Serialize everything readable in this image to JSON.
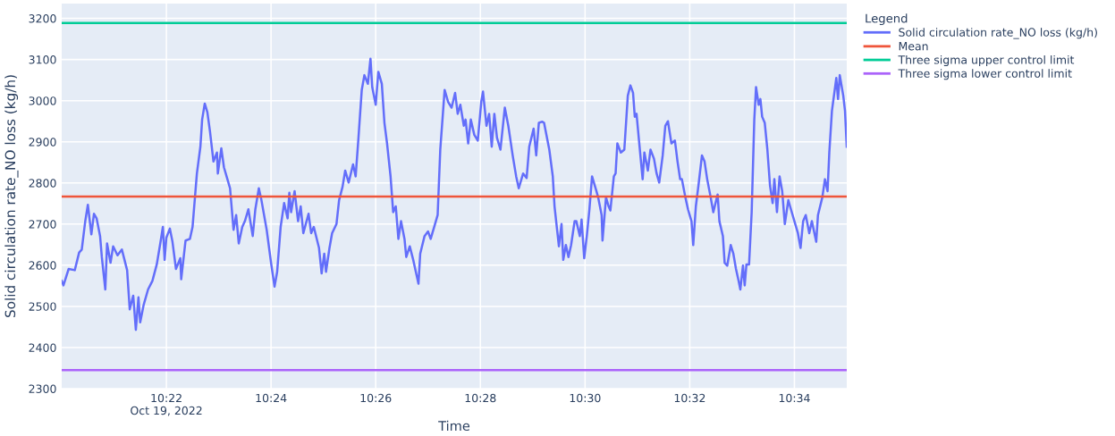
{
  "chart_data": {
    "type": "line",
    "xlabel": "Time",
    "ylabel": "Solid circulation rate_NO loss (kg/h)",
    "legend_title": "Legend",
    "legend": "top right",
    "grid": true,
    "marker": "none",
    "line_style": "solid",
    "xlim": [
      "2022-10-19T10:20",
      "2022-10-19T10:35"
    ],
    "xticks": [
      {
        "value": "2022-10-19T10:22",
        "label": "10:22\nOct 19, 2022"
      },
      {
        "value": "2022-10-19T10:24",
        "label": "10:24"
      },
      {
        "value": "2022-10-19T10:26",
        "label": "10:26"
      },
      {
        "value": "2022-10-19T10:28",
        "label": "10:28"
      },
      {
        "value": "2022-10-19T10:30",
        "label": "10:30"
      },
      {
        "value": "2022-10-19T10:32",
        "label": "10:32"
      },
      {
        "value": "2022-10-19T10:34",
        "label": "10:34"
      }
    ],
    "ylim": [
      2300,
      3236
    ],
    "yticks": [
      2300,
      2400,
      2500,
      2600,
      2700,
      2800,
      2900,
      3000,
      3100,
      3200
    ],
    "series": [
      {
        "name": "Solid circulation rate_NO loss (kg/h)",
        "color": "#636efa",
        "x": [
          "2022-10-19T10:20:00",
          "2022-10-19T10:20:02",
          "2022-10-19T10:20:08",
          "2022-10-19T10:20:15",
          "2022-10-19T10:20:20",
          "2022-10-19T10:20:23",
          "2022-10-19T10:20:27",
          "2022-10-19T10:20:30",
          "2022-10-19T10:20:34",
          "2022-10-19T10:20:37",
          "2022-10-19T10:20:40",
          "2022-10-19T10:20:44",
          "2022-10-19T10:20:46",
          "2022-10-19T10:20:50",
          "2022-10-19T10:20:52",
          "2022-10-19T10:20:56",
          "2022-10-19T10:20:59",
          "2022-10-19T10:21:04",
          "2022-10-19T10:21:09",
          "2022-10-19T10:21:15",
          "2022-10-19T10:21:18",
          "2022-10-19T10:21:22",
          "2022-10-19T10:21:25",
          "2022-10-19T10:21:28",
          "2022-10-19T10:21:30",
          "2022-10-19T10:21:34",
          "2022-10-19T10:21:39",
          "2022-10-19T10:21:44",
          "2022-10-19T10:21:49",
          "2022-10-19T10:21:53",
          "2022-10-19T10:21:56",
          "2022-10-19T10:21:58",
          "2022-10-19T10:22:00",
          "2022-10-19T10:22:04",
          "2022-10-19T10:22:07",
          "2022-10-19T10:22:11",
          "2022-10-19T10:22:16",
          "2022-10-19T10:22:17",
          "2022-10-19T10:22:22",
          "2022-10-19T10:22:27",
          "2022-10-19T10:22:30",
          "2022-10-19T10:22:35",
          "2022-10-19T10:22:39",
          "2022-10-19T10:22:41",
          "2022-10-19T10:22:44",
          "2022-10-19T10:22:47",
          "2022-10-19T10:22:50",
          "2022-10-19T10:22:54",
          "2022-10-19T10:22:58",
          "2022-10-19T10:22:59",
          "2022-10-19T10:23:03",
          "2022-10-19T10:23:06",
          "2022-10-19T10:23:10",
          "2022-10-19T10:23:13",
          "2022-10-19T10:23:17",
          "2022-10-19T10:23:20",
          "2022-10-19T10:23:23",
          "2022-10-19T10:23:27",
          "2022-10-19T10:23:30",
          "2022-10-19T10:23:34",
          "2022-10-19T10:23:39",
          "2022-10-19T10:23:42",
          "2022-10-19T10:23:46",
          "2022-10-19T10:23:49",
          "2022-10-19T10:23:55",
          "2022-10-19T10:24:00",
          "2022-10-19T10:24:04",
          "2022-10-19T10:24:07",
          "2022-10-19T10:24:11",
          "2022-10-19T10:24:15",
          "2022-10-19T10:24:19",
          "2022-10-19T10:24:21",
          "2022-10-19T10:24:23",
          "2022-10-19T10:24:27",
          "2022-10-19T10:24:31",
          "2022-10-19T10:24:34",
          "2022-10-19T10:24:37",
          "2022-10-19T10:24:43",
          "2022-10-19T10:24:46",
          "2022-10-19T10:24:49",
          "2022-10-19T10:24:55",
          "2022-10-19T10:24:58",
          "2022-10-19T10:25:01",
          "2022-10-19T10:25:03",
          "2022-10-19T10:25:07",
          "2022-10-19T10:25:10",
          "2022-10-19T10:25:15",
          "2022-10-19T10:25:18",
          "2022-10-19T10:25:22",
          "2022-10-19T10:25:25",
          "2022-10-19T10:25:29",
          "2022-10-19T10:25:34",
          "2022-10-19T10:25:37",
          "2022-10-19T10:25:40",
          "2022-10-19T10:25:44",
          "2022-10-19T10:25:47",
          "2022-10-19T10:25:51",
          "2022-10-19T10:25:54",
          "2022-10-19T10:25:56",
          "2022-10-19T10:26:00",
          "2022-10-19T10:26:03",
          "2022-10-19T10:26:07",
          "2022-10-19T10:26:10",
          "2022-10-19T10:26:13",
          "2022-10-19T10:26:17",
          "2022-10-19T10:26:20",
          "2022-10-19T10:26:23",
          "2022-10-19T10:26:26",
          "2022-10-19T10:26:29",
          "2022-10-19T10:26:33",
          "2022-10-19T10:26:35",
          "2022-10-19T10:26:39",
          "2022-10-19T10:26:43",
          "2022-10-19T10:26:46",
          "2022-10-19T10:26:49",
          "2022-10-19T10:26:51",
          "2022-10-19T10:26:56",
          "2022-10-19T10:27:00",
          "2022-10-19T10:27:03",
          "2022-10-19T10:27:07",
          "2022-10-19T10:27:11",
          "2022-10-19T10:27:14",
          "2022-10-19T10:27:17",
          "2022-10-19T10:27:19",
          "2022-10-19T10:27:23",
          "2022-10-19T10:27:27",
          "2022-10-19T10:27:31",
          "2022-10-19T10:27:34",
          "2022-10-19T10:27:37",
          "2022-10-19T10:27:41",
          "2022-10-19T10:27:43",
          "2022-10-19T10:27:46",
          "2022-10-19T10:27:49",
          "2022-10-19T10:27:53",
          "2022-10-19T10:27:57",
          "2022-10-19T10:28:01",
          "2022-10-19T10:28:03",
          "2022-10-19T10:28:07",
          "2022-10-19T10:28:10",
          "2022-10-19T10:28:13",
          "2022-10-19T10:28:16",
          "2022-10-19T10:28:19",
          "2022-10-19T10:28:23",
          "2022-10-19T10:28:28",
          "2022-10-19T10:28:32",
          "2022-10-19T10:28:37",
          "2022-10-19T10:28:41",
          "2022-10-19T10:28:44",
          "2022-10-19T10:28:49",
          "2022-10-19T10:28:53",
          "2022-10-19T10:28:56",
          "2022-10-19T10:29:01",
          "2022-10-19T10:29:04",
          "2022-10-19T10:29:07",
          "2022-10-19T10:29:11",
          "2022-10-19T10:29:13",
          "2022-10-19T10:29:19",
          "2022-10-19T10:29:23",
          "2022-10-19T10:29:25",
          "2022-10-19T10:29:30",
          "2022-10-19T10:29:33",
          "2022-10-19T10:29:35",
          "2022-10-19T10:29:38",
          "2022-10-19T10:29:41",
          "2022-10-19T10:29:44",
          "2022-10-19T10:29:48",
          "2022-10-19T10:29:50",
          "2022-10-19T10:29:54",
          "2022-10-19T10:29:56",
          "2022-10-19T10:29:59",
          "2022-10-19T10:30:02",
          "2022-10-19T10:30:05",
          "2022-10-19T10:30:08",
          "2022-10-19T10:30:13",
          "2022-10-19T10:30:15",
          "2022-10-19T10:30:19",
          "2022-10-19T10:30:20",
          "2022-10-19T10:30:24",
          "2022-10-19T10:30:27",
          "2022-10-19T10:30:29",
          "2022-10-19T10:30:33",
          "2022-10-19T10:30:35",
          "2022-10-19T10:30:37",
          "2022-10-19T10:30:41",
          "2022-10-19T10:30:45",
          "2022-10-19T10:30:49",
          "2022-10-19T10:30:52",
          "2022-10-19T10:30:55",
          "2022-10-19T10:30:57",
          "2022-10-19T10:30:59",
          "2022-10-19T10:31:02",
          "2022-10-19T10:31:06",
          "2022-10-19T10:31:08",
          "2022-10-19T10:31:12",
          "2022-10-19T10:31:15",
          "2022-10-19T10:31:19",
          "2022-10-19T10:31:22",
          "2022-10-19T10:31:25",
          "2022-10-19T10:31:29",
          "2022-10-19T10:31:32",
          "2022-10-19T10:31:35",
          "2022-10-19T10:31:39",
          "2022-10-19T10:31:43",
          "2022-10-19T10:31:46",
          "2022-10-19T10:31:49",
          "2022-10-19T10:31:51",
          "2022-10-19T10:31:55",
          "2022-10-19T10:31:58",
          "2022-10-19T10:32:02",
          "2022-10-19T10:32:04",
          "2022-10-19T10:32:07",
          "2022-10-19T10:32:10",
          "2022-10-19T10:32:14",
          "2022-10-19T10:32:17",
          "2022-10-19T10:32:20",
          "2022-10-19T10:32:24",
          "2022-10-19T10:32:27",
          "2022-10-19T10:32:32",
          "2022-10-19T10:32:34",
          "2022-10-19T10:32:38",
          "2022-10-19T10:32:40",
          "2022-10-19T10:32:43",
          "2022-10-19T10:32:47",
          "2022-10-19T10:32:50",
          "2022-10-19T10:32:53",
          "2022-10-19T10:32:56",
          "2022-10-19T10:32:58",
          "2022-10-19T10:33:01",
          "2022-10-19T10:33:03",
          "2022-10-19T10:33:05",
          "2022-10-19T10:33:08",
          "2022-10-19T10:33:11",
          "2022-10-19T10:33:14",
          "2022-10-19T10:33:16",
          "2022-10-19T10:33:19",
          "2022-10-19T10:33:21",
          "2022-10-19T10:33:23",
          "2022-10-19T10:33:26",
          "2022-10-19T10:33:29",
          "2022-10-19T10:33:32",
          "2022-10-19T10:33:35",
          "2022-10-19T10:33:37",
          "2022-10-19T10:33:40",
          "2022-10-19T10:33:43",
          "2022-10-19T10:33:46",
          "2022-10-19T10:33:49",
          "2022-10-19T10:33:53",
          "2022-10-19T10:33:56",
          "2022-10-19T10:34:00",
          "2022-10-19T10:34:04",
          "2022-10-19T10:34:07",
          "2022-10-19T10:34:10",
          "2022-10-19T10:34:13",
          "2022-10-19T10:34:17",
          "2022-10-19T10:34:20",
          "2022-10-19T10:34:25",
          "2022-10-19T10:34:27",
          "2022-10-19T10:34:32",
          "2022-10-19T10:34:35",
          "2022-10-19T10:34:38",
          "2022-10-19T10:34:40",
          "2022-10-19T10:34:43",
          "2022-10-19T10:34:48",
          "2022-10-19T10:34:50",
          "2022-10-19T10:34:52",
          "2022-10-19T10:34:56",
          "2022-10-19T10:34:58",
          "2022-10-19T10:35:00"
        ],
        "values": [
          2562,
          2551,
          2591,
          2588,
          2631,
          2638,
          2707,
          2747,
          2675,
          2725,
          2714,
          2671,
          2620,
          2541,
          2653,
          2606,
          2646,
          2624,
          2638,
          2588,
          2493,
          2526,
          2443,
          2522,
          2461,
          2504,
          2541,
          2562,
          2602,
          2653,
          2693,
          2613,
          2667,
          2689,
          2657,
          2591,
          2617,
          2566,
          2660,
          2664,
          2693,
          2823,
          2888,
          2954,
          2993,
          2972,
          2925,
          2852,
          2874,
          2823,
          2884,
          2838,
          2809,
          2787,
          2686,
          2722,
          2653,
          2693,
          2707,
          2736,
          2671,
          2736,
          2787,
          2758,
          2686,
          2606,
          2548,
          2584,
          2693,
          2751,
          2714,
          2776,
          2729,
          2780,
          2707,
          2743,
          2678,
          2725,
          2678,
          2693,
          2642,
          2580,
          2628,
          2584,
          2642,
          2678,
          2700,
          2758,
          2791,
          2830,
          2801,
          2845,
          2816,
          2903,
          3026,
          3062,
          3041,
          3102,
          3033,
          2990,
          3070,
          3041,
          2946,
          2896,
          2816,
          2729,
          2743,
          2664,
          2707,
          2664,
          2620,
          2646,
          2613,
          2584,
          2555,
          2628,
          2671,
          2682,
          2664,
          2693,
          2722,
          2881,
          2968,
          3026,
          2997,
          2983,
          3019,
          2968,
          2990,
          2939,
          2954,
          2896,
          2954,
          2917,
          2903,
          2997,
          3022,
          2939,
          2968,
          2888,
          2968,
          2910,
          2881,
          2983,
          2939,
          2867,
          2816,
          2787,
          2823,
          2812,
          2888,
          2932,
          2867,
          2946,
          2949,
          2946,
          2881,
          2816,
          2743,
          2646,
          2700,
          2613,
          2649,
          2620,
          2649,
          2707,
          2707,
          2671,
          2711,
          2617,
          2671,
          2736,
          2816,
          2780,
          2765,
          2722,
          2660,
          2765,
          2743,
          2733,
          2816,
          2823,
          2896,
          2874,
          2881,
          3012,
          3037,
          3019,
          2961,
          2968,
          2899,
          2809,
          2874,
          2830,
          2881,
          2859,
          2823,
          2801,
          2867,
          2939,
          2950,
          2896,
          2903,
          2852,
          2809,
          2809,
          2765,
          2736,
          2707,
          2649,
          2743,
          2794,
          2867,
          2852,
          2809,
          2765,
          2729,
          2772,
          2707,
          2671,
          2606,
          2599,
          2649,
          2628,
          2591,
          2562,
          2541,
          2599,
          2551,
          2602,
          2602,
          2729,
          2954,
          3033,
          2990,
          3004,
          2961,
          2946,
          2881,
          2794,
          2751,
          2809,
          2729,
          2816,
          2780,
          2700,
          2758,
          2736,
          2707,
          2678,
          2642,
          2707,
          2722,
          2678,
          2707,
          2657,
          2722,
          2765,
          2809,
          2780,
          2874,
          2975,
          3055,
          3004,
          3062,
          3012,
          2975,
          2888
        ]
      },
      {
        "name": "Mean",
        "color": "#ef553b",
        "x": [
          "2022-10-19T10:20:00",
          "2022-10-19T10:35:00"
        ],
        "values": [
          2767,
          2767
        ]
      },
      {
        "name": "Three sigma upper control limit",
        "color": "#00cc96",
        "x": [
          "2022-10-19T10:20:00",
          "2022-10-19T10:35:00"
        ],
        "values": [
          3189,
          3189
        ]
      },
      {
        "name": "Three sigma lower control limit",
        "color": "#ab63fa",
        "x": [
          "2022-10-19T10:20:00",
          "2022-10-19T10:35:00"
        ],
        "values": [
          2345,
          2345
        ]
      }
    ]
  }
}
